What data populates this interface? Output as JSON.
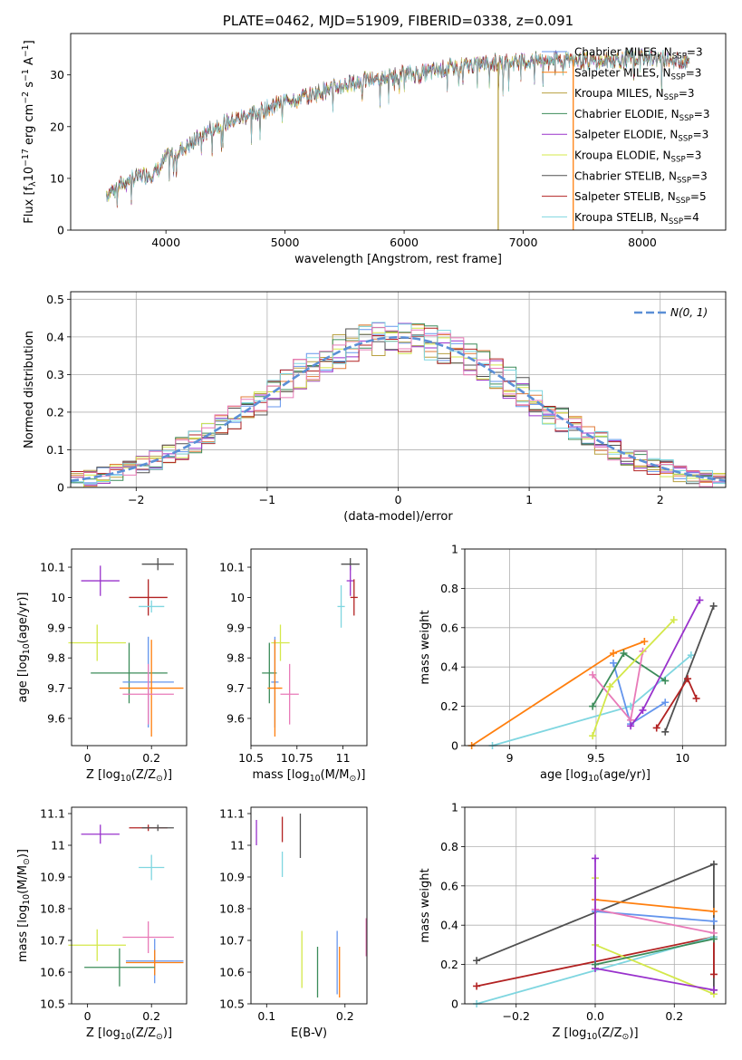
{
  "colors": {
    "chabrier_miles": "#6495ed",
    "salpeter_miles": "#ff7f0e",
    "kroupa_miles": "#b8a040",
    "chabrier_elodie": "#3c8c5a",
    "salpeter_elodie": "#9932cc",
    "kroupa_elodie": "#d4e84a",
    "chabrier_stelib": "#505050",
    "salpeter_stelib": "#b22222",
    "kroupa_stelib": "#7fd6e0",
    "normal_curve": "#5b8fd6",
    "salpeter_miles_hist": "#e07b39",
    "pink": "#e87ab8"
  },
  "chart_data": [
    {
      "id": "spectrum",
      "type": "line",
      "title": "PLATE=0462, MJD=51909, FIBERID=0338, z=0.091",
      "xlabel": "wavelength [Angstrom, rest frame]",
      "ylabel": "Flux [f_λ10^-17 erg cm^-2 s^-1 A^-1]",
      "xlim": [
        3200,
        8700
      ],
      "ylim": [
        0,
        38
      ],
      "xticks": [
        4000,
        5000,
        6000,
        7000,
        8000
      ],
      "yticks": [
        0,
        10,
        20,
        30
      ],
      "grid": false,
      "legend_position": "right",
      "legend": [
        "Chabrier MILES, N_SSP=3",
        "Salpeter MILES, N_SSP=3",
        "Kroupa MILES, N_SSP=3",
        "Chabrier ELODIE, N_SSP=3",
        "Salpeter ELODIE, N_SSP=3",
        "Kroupa ELODIE, N_SSP=3",
        "Chabrier STELIB, N_SSP=3",
        "Salpeter STELIB, N_SSP=5",
        "Kroupa STELIB, N_SSP=4"
      ],
      "continuum": {
        "x": [
          3500,
          3700,
          3900,
          3950,
          4000,
          4200,
          4400,
          4600,
          4800,
          5000,
          5200,
          5400,
          5600,
          5800,
          6000,
          6200,
          6400,
          6600,
          6800,
          7000,
          7200,
          7400,
          7600,
          7800,
          8000,
          8200,
          8400
        ],
        "y": [
          7,
          10,
          11,
          12,
          14,
          16.5,
          20,
          21.5,
          23,
          25,
          26,
          27.5,
          28.5,
          29.5,
          30,
          30.5,
          31.5,
          32,
          32.5,
          32.5,
          33,
          33,
          32.5,
          33,
          33.5,
          33,
          32.5
        ]
      },
      "spikes": [
        {
          "x": 6790,
          "to": 0,
          "series": "kroupa_miles"
        },
        {
          "x": 7420,
          "to": 0,
          "series": "salpeter_miles"
        }
      ]
    },
    {
      "id": "residuals",
      "type": "line",
      "xlabel": "(data-model)/error",
      "ylabel": "Normed distribution",
      "xlim": [
        -2.5,
        2.5
      ],
      "ylim": [
        0,
        0.52
      ],
      "xticks": [
        -2,
        -1,
        0,
        1,
        2
      ],
      "yticks": [
        0.0,
        0.1,
        0.2,
        0.3,
        0.4,
        0.5
      ],
      "grid": true,
      "legend_position": "top-right",
      "legend": [
        "N(0, 1)"
      ],
      "gaussian": {
        "mu": 0,
        "sigma": 1
      }
    },
    {
      "id": "age_vs_Z",
      "type": "scatter",
      "xlabel": "Z [log10(Z/Z⊙)]",
      "ylabel": "age  [log10(age/yr)]",
      "xlim": [
        -0.05,
        0.31
      ],
      "ylim": [
        9.51,
        10.16
      ],
      "xticks": [
        0.0,
        0.2
      ],
      "yticks": [
        9.6,
        9.7,
        9.8,
        9.9,
        10.0,
        10.1
      ],
      "points": [
        {
          "s": "salpeter_elodie",
          "x": 0.04,
          "y": 10.055,
          "xe": 0.06,
          "ye": 0.05
        },
        {
          "s": "chabrier_stelib",
          "x": 0.22,
          "y": 10.11,
          "xe": 0.05,
          "ye": 0.02
        },
        {
          "s": "salpeter_stelib",
          "x": 0.19,
          "y": 10.0,
          "xe": 0.06,
          "ye": 0.06
        },
        {
          "s": "kroupa_stelib",
          "x": 0.2,
          "y": 9.97,
          "xe": 0.04,
          "ye": 0.02
        },
        {
          "s": "kroupa_elodie",
          "x": 0.03,
          "y": 9.85,
          "xe": 0.09,
          "ye": 0.06
        },
        {
          "s": "chabrier_elodie",
          "x": 0.13,
          "y": 9.75,
          "xe": 0.12,
          "ye": 0.1
        },
        {
          "s": "chabrier_miles",
          "x": 0.19,
          "y": 9.72,
          "xe": 0.08,
          "ye": 0.15
        },
        {
          "s": "salpeter_miles",
          "x": 0.2,
          "y": 9.7,
          "xe": 0.1,
          "ye": 0.16
        },
        {
          "s": "pink",
          "x": 0.19,
          "y": 9.68,
          "xe": 0.08,
          "ye": 0.1
        }
      ]
    },
    {
      "id": "age_vs_mass",
      "type": "scatter",
      "xlabel": "mass [log10(M/M⊙)]",
      "xlim": [
        10.5,
        11.13
      ],
      "ylim": [
        9.51,
        10.16
      ],
      "xticks": [
        10.5,
        10.75,
        11.0
      ],
      "yticks": [
        9.6,
        9.7,
        9.8,
        9.9,
        10.0,
        10.1
      ],
      "points": [
        {
          "s": "chabrier_stelib",
          "x": 11.04,
          "y": 10.11,
          "xe": 0.05,
          "ye": 0.02
        },
        {
          "s": "salpeter_elodie",
          "x": 11.04,
          "y": 10.055,
          "xe": 0.02,
          "ye": 0.05
        },
        {
          "s": "salpeter_stelib",
          "x": 11.06,
          "y": 10.0,
          "xe": 0.02,
          "ye": 0.06
        },
        {
          "s": "kroupa_stelib",
          "x": 10.99,
          "y": 9.97,
          "xe": 0.02,
          "ye": 0.07
        },
        {
          "s": "kroupa_elodie",
          "x": 10.66,
          "y": 9.85,
          "xe": 0.05,
          "ye": 0.06
        },
        {
          "s": "chabrier_elodie",
          "x": 10.6,
          "y": 9.75,
          "xe": 0.04,
          "ye": 0.1
        },
        {
          "s": "chabrier_miles",
          "x": 10.63,
          "y": 9.72,
          "xe": 0.02,
          "ye": 0.15
        },
        {
          "s": "salpeter_miles",
          "x": 10.63,
          "y": 9.7,
          "xe": 0.04,
          "ye": 0.16
        },
        {
          "s": "pink",
          "x": 10.71,
          "y": 9.68,
          "xe": 0.05,
          "ye": 0.1
        }
      ]
    },
    {
      "id": "mass_weight_vs_age",
      "type": "line",
      "xlabel": "age  [log10(age/yr)]",
      "ylabel": "mass weight",
      "xlim": [
        8.74,
        10.25
      ],
      "ylim": [
        0,
        1.0
      ],
      "xticks": [
        9.0,
        9.5,
        10.0
      ],
      "yticks": [
        0.0,
        0.2,
        0.4,
        0.6,
        0.8,
        1.0
      ],
      "grid": true,
      "series": [
        {
          "s": "salpeter_miles",
          "x": [
            8.78,
            9.6,
            9.78
          ],
          "y": [
            0.0,
            0.47,
            0.53
          ]
        },
        {
          "s": "kroupa_stelib",
          "x": [
            8.9,
            9.7,
            10.05
          ],
          "y": [
            0.0,
            0.2,
            0.46
          ]
        },
        {
          "s": "chabrier_miles",
          "x": [
            9.6,
            9.7,
            9.9
          ],
          "y": [
            0.42,
            0.11,
            0.22
          ]
        },
        {
          "s": "chabrier_elodie",
          "x": [
            9.48,
            9.66,
            9.9
          ],
          "y": [
            0.2,
            0.47,
            0.33
          ]
        },
        {
          "s": "pink",
          "x": [
            9.48,
            9.7,
            9.77
          ],
          "y": [
            0.36,
            0.13,
            0.48
          ]
        },
        {
          "s": "kroupa_elodie",
          "x": [
            9.48,
            9.58,
            9.95
          ],
          "y": [
            0.05,
            0.3,
            0.64
          ]
        },
        {
          "s": "salpeter_elodie",
          "x": [
            9.7,
            9.77,
            10.1
          ],
          "y": [
            0.1,
            0.18,
            0.74
          ]
        },
        {
          "s": "chabrier_stelib",
          "x": [
            9.9,
            10.18
          ],
          "y": [
            0.07,
            0.71
          ]
        },
        {
          "s": "salpeter_stelib",
          "x": [
            9.85,
            10.03,
            10.08
          ],
          "y": [
            0.09,
            0.34,
            0.24
          ]
        }
      ]
    },
    {
      "id": "mass_vs_Z",
      "type": "scatter",
      "xlabel": "Z [log10(Z/Z⊙)]",
      "ylabel": "mass [log10(M/M⊙)]",
      "xlim": [
        -0.05,
        0.31
      ],
      "ylim": [
        10.5,
        11.12
      ],
      "xticks": [
        0.0,
        0.2
      ],
      "yticks": [
        10.5,
        10.6,
        10.7,
        10.8,
        10.9,
        11.0,
        11.1
      ],
      "points": [
        {
          "s": "salpeter_elodie",
          "x": 0.04,
          "y": 11.035,
          "xe": 0.06,
          "ye": 0.03
        },
        {
          "s": "salpeter_stelib",
          "x": 0.19,
          "y": 11.055,
          "xe": 0.06,
          "ye": 0.01
        },
        {
          "s": "chabrier_stelib",
          "x": 0.22,
          "y": 11.055,
          "xe": 0.05,
          "ye": 0.01
        },
        {
          "s": "kroupa_stelib",
          "x": 0.2,
          "y": 10.93,
          "xe": 0.04,
          "ye": 0.04
        },
        {
          "s": "pink",
          "x": 0.19,
          "y": 10.71,
          "xe": 0.08,
          "ye": 0.05
        },
        {
          "s": "kroupa_elodie",
          "x": 0.03,
          "y": 10.685,
          "xe": 0.09,
          "ye": 0.05
        },
        {
          "s": "chabrier_miles",
          "x": 0.21,
          "y": 10.635,
          "xe": 0.09,
          "ye": 0.07
        },
        {
          "s": "salpeter_miles",
          "x": 0.21,
          "y": 10.63,
          "xe": 0.09,
          "ye": 0.04
        },
        {
          "s": "chabrier_elodie",
          "x": 0.1,
          "y": 10.615,
          "xe": 0.11,
          "ye": 0.06
        }
      ]
    },
    {
      "id": "mass_vs_EBV",
      "type": "scatter",
      "xlabel": "E(B-V)",
      "xlim": [
        0.08,
        0.228
      ],
      "ylim": [
        10.5,
        11.12
      ],
      "xticks": [
        0.1,
        0.2
      ],
      "yticks": [
        10.5,
        10.6,
        10.7,
        10.8,
        10.9,
        11.0,
        11.1
      ],
      "points": [
        {
          "s": "salpeter_elodie",
          "x": 0.087,
          "y": 11.04,
          "xe": 0,
          "ye": 0.04
        },
        {
          "s": "salpeter_stelib",
          "x": 0.12,
          "y": 11.05,
          "xe": 0,
          "ye": 0.04
        },
        {
          "s": "chabrier_stelib",
          "x": 0.143,
          "y": 11.03,
          "xe": 0,
          "ye": 0.07
        },
        {
          "s": "kroupa_stelib",
          "x": 0.12,
          "y": 10.94,
          "xe": 0,
          "ye": 0.04
        },
        {
          "s": "pink",
          "x": 0.227,
          "y": 10.71,
          "xe": 0,
          "ye": 0.06
        },
        {
          "s": "kroupa_elodie",
          "x": 0.145,
          "y": 10.64,
          "xe": 0,
          "ye": 0.09
        },
        {
          "s": "chabrier_miles",
          "x": 0.19,
          "y": 10.63,
          "xe": 0,
          "ye": 0.1
        },
        {
          "s": "salpeter_miles",
          "x": 0.193,
          "y": 10.6,
          "xe": 0,
          "ye": 0.08
        },
        {
          "s": "chabrier_elodie",
          "x": 0.165,
          "y": 10.6,
          "xe": 0,
          "ye": 0.08
        }
      ]
    },
    {
      "id": "mass_weight_vs_Z",
      "type": "line",
      "xlabel": "Z [log10(Z/Z⊙)]",
      "ylabel": "mass weight",
      "xlim": [
        -0.33,
        0.33
      ],
      "ylim": [
        0,
        1.0
      ],
      "xticks": [
        -0.2,
        0.0,
        0.2
      ],
      "yticks": [
        0.0,
        0.2,
        0.4,
        0.6,
        0.8,
        1.0
      ],
      "grid": true,
      "series": [
        {
          "s": "chabrier_stelib",
          "x": [
            -0.3,
            0.3,
            0.3
          ],
          "y": [
            0.22,
            0.71,
            0.07
          ]
        },
        {
          "s": "salpeter_stelib",
          "x": [
            -0.3,
            0.3,
            0.3
          ],
          "y": [
            0.09,
            0.34,
            0.15
          ]
        },
        {
          "s": "kroupa_stelib",
          "x": [
            -0.3,
            0.3
          ],
          "y": [
            0.0,
            0.34
          ]
        },
        {
          "s": "salpeter_miles",
          "x": [
            0.0,
            0.3
          ],
          "y": [
            0.53,
            0.47
          ]
        },
        {
          "s": "chabrier_miles",
          "x": [
            0.0,
            0.3
          ],
          "y": [
            0.47,
            0.42
          ]
        },
        {
          "s": "kroupa_elodie",
          "x": [
            0.0,
            0.0,
            0.3
          ],
          "y": [
            0.64,
            0.3,
            0.05
          ]
        },
        {
          "s": "pink",
          "x": [
            0.0,
            0.3
          ],
          "y": [
            0.48,
            0.36
          ]
        },
        {
          "s": "salpeter_elodie",
          "x": [
            0.0,
            0.0,
            0.3
          ],
          "y": [
            0.74,
            0.18,
            0.07
          ]
        },
        {
          "s": "chabrier_elodie",
          "x": [
            0.0,
            0.3
          ],
          "y": [
            0.2,
            0.33
          ]
        }
      ]
    }
  ]
}
